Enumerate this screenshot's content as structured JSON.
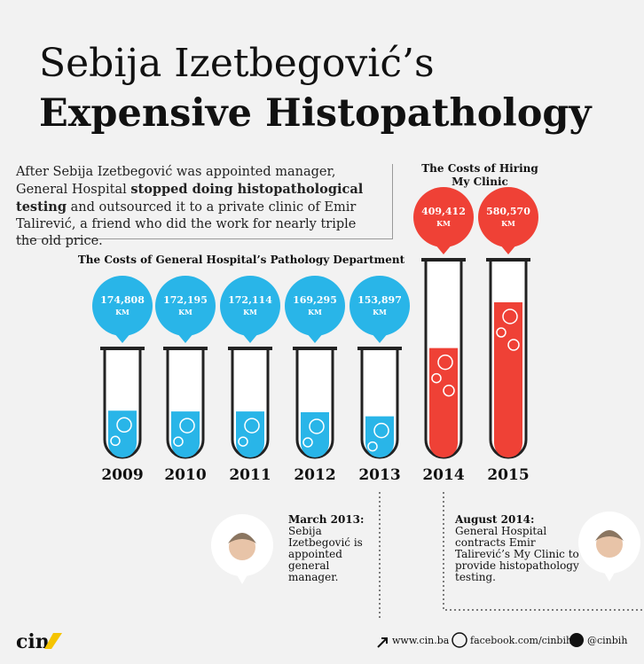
{
  "header": {
    "title_line1": "Sebija Izetbegović’s",
    "title_line2": "Expensive Histopathology"
  },
  "intro": {
    "before": "After Sebija Izetbegović was appointed manager, General Hospital ",
    "bold": "stopped doing histopathological testing",
    "after": " and outsourced it to a private clinic of Emir Talirević, a friend who did the work for nearly triple the old price."
  },
  "chart_data": {
    "type": "tube",
    "group_titles": [
      {
        "lines": [
          "The Costs of General Hospital’s Pathology Department"
        ],
        "color": "#29b5e8"
      },
      {
        "lines": [
          "The Costs of Hiring",
          "My Clinic"
        ],
        "color": "#ef4136"
      }
    ],
    "categories": [
      "2009",
      "2010",
      "2011",
      "2012",
      "2013",
      "2014",
      "2015"
    ],
    "values": [
      174808,
      172195,
      172114,
      169295,
      153897,
      409412,
      580570
    ],
    "value_labels": [
      "174,808",
      "172,195",
      "172,114",
      "169,295",
      "153,897",
      "409,412",
      "580,570"
    ],
    "unit": "KM",
    "colors": [
      "#29b5e8",
      "#29b5e8",
      "#29b5e8",
      "#29b5e8",
      "#29b5e8",
      "#ef4136",
      "#ef4136"
    ]
  },
  "annotations": [
    {
      "date": "March 2013:",
      "lines": [
        "Sebija",
        "Izetbegović is",
        "appointed",
        "general",
        "manager."
      ]
    },
    {
      "date": "August 2014:",
      "lines": [
        "General Hospital",
        "contracts Emir",
        "Talirević’s My Clinic to",
        "provide histopathology",
        "testing."
      ]
    }
  ],
  "footer": {
    "logo": "cin",
    "website": "www.cin.ba",
    "facebook": "facebook.com/cinbih",
    "twitter": "@cinbih"
  }
}
